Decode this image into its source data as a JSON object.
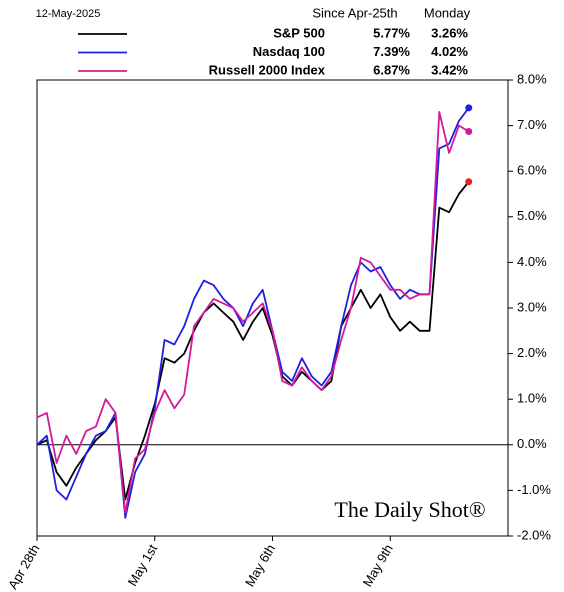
{
  "chart_data": {
    "type": "line",
    "date_label": "12-May-2025",
    "columns": [
      "Since Apr-25th",
      "Monday"
    ],
    "watermark": "The Daily Shot®",
    "x": [
      0,
      0.25,
      0.5,
      0.75,
      1,
      1.25,
      1.5,
      1.75,
      2,
      2.25,
      2.5,
      2.75,
      3,
      3.25,
      3.5,
      3.75,
      4,
      4.25,
      4.5,
      4.75,
      5,
      5.25,
      5.5,
      5.75,
      6,
      6.25,
      6.5,
      6.75,
      7,
      7.25,
      7.5,
      7.75,
      8,
      8.25,
      8.5,
      8.75,
      9,
      9.25,
      9.5,
      9.75,
      10,
      10.25,
      10.5,
      10.75,
      11
    ],
    "series": [
      {
        "name": "S&P 500",
        "color": "#000000",
        "marker_color": "#e8211c",
        "stats": [
          "5.77%",
          "3.26%"
        ],
        "values": [
          0,
          0.1,
          -0.6,
          -0.9,
          -0.5,
          -0.2,
          0.1,
          0.3,
          0.6,
          -1.2,
          -0.4,
          0.2,
          0.9,
          1.9,
          1.8,
          2.0,
          2.5,
          2.9,
          3.1,
          2.9,
          2.7,
          2.3,
          2.7,
          3.0,
          2.4,
          1.5,
          1.3,
          1.6,
          1.4,
          1.2,
          1.4,
          2.6,
          3.0,
          3.4,
          3.0,
          3.3,
          2.8,
          2.5,
          2.7,
          2.5,
          2.5,
          5.2,
          5.1,
          5.5,
          5.77
        ]
      },
      {
        "name": "Nasdaq 100",
        "color": "#1f1fe0",
        "marker_color": "#1f1fe0",
        "stats": [
          "7.39%",
          "4.02%"
        ],
        "values": [
          0,
          0.2,
          -1.0,
          -1.2,
          -0.7,
          -0.2,
          0.2,
          0.3,
          0.7,
          -1.6,
          -0.6,
          -0.2,
          0.8,
          2.3,
          2.2,
          2.6,
          3.2,
          3.6,
          3.5,
          3.2,
          3.0,
          2.6,
          3.1,
          3.4,
          2.5,
          1.6,
          1.4,
          1.9,
          1.5,
          1.3,
          1.6,
          2.6,
          3.5,
          4.0,
          3.8,
          3.9,
          3.5,
          3.2,
          3.4,
          3.3,
          3.3,
          6.5,
          6.6,
          7.1,
          7.39
        ]
      },
      {
        "name": "Russell 2000 Index",
        "color": "#d4199a",
        "marker_color": "#d4199a",
        "stats": [
          "6.87%",
          "3.42%"
        ],
        "values": [
          0.6,
          0.7,
          -0.4,
          0.2,
          -0.2,
          0.3,
          0.4,
          1.0,
          0.7,
          -1.5,
          -0.3,
          -0.1,
          0.7,
          1.2,
          0.8,
          1.1,
          2.6,
          2.9,
          3.2,
          3.1,
          3.0,
          2.7,
          2.9,
          3.1,
          2.5,
          1.4,
          1.3,
          1.7,
          1.4,
          1.2,
          1.5,
          2.3,
          3.0,
          4.1,
          4.0,
          3.7,
          3.4,
          3.4,
          3.2,
          3.3,
          3.3,
          7.3,
          6.4,
          7.0,
          6.87
        ]
      }
    ],
    "xlim": [
      0,
      12
    ],
    "xticks": [
      {
        "value": 0,
        "label": "Apr 28th"
      },
      {
        "value": 3,
        "label": "May 1st"
      },
      {
        "value": 6,
        "label": "May 6th"
      },
      {
        "value": 9,
        "label": "May 9th"
      }
    ],
    "ylim": [
      -2,
      8
    ],
    "yticks": [
      {
        "value": 8,
        "label": "8.0%"
      },
      {
        "value": 7,
        "label": "7.0%"
      },
      {
        "value": 6,
        "label": "6.0%"
      },
      {
        "value": 5,
        "label": "5.0%"
      },
      {
        "value": 4,
        "label": "4.0%"
      },
      {
        "value": 3,
        "label": "3.0%"
      },
      {
        "value": 2,
        "label": "2.0%"
      },
      {
        "value": 1,
        "label": "1.0%"
      },
      {
        "value": 0,
        "label": "0.0%"
      },
      {
        "value": -1,
        "label": "-1.0%"
      },
      {
        "value": -2,
        "label": "-2.0%"
      }
    ],
    "zero_line": true,
    "end_markers": true
  }
}
